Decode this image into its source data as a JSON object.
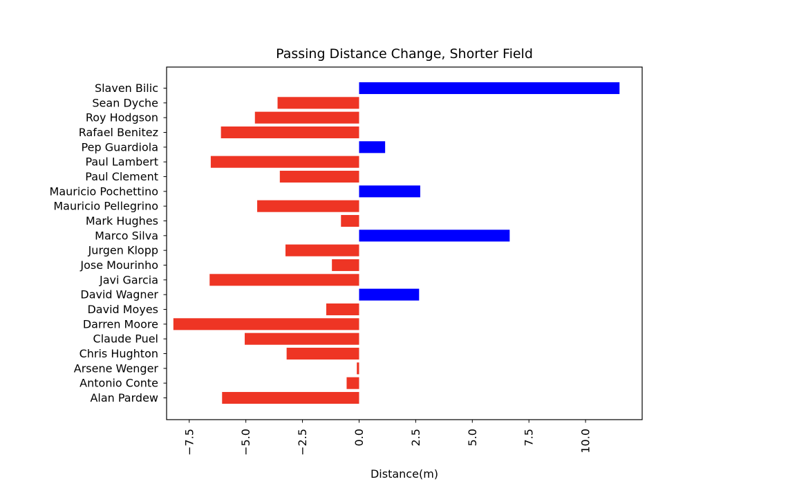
{
  "chart_data": {
    "type": "bar",
    "orientation": "horizontal",
    "title": "Passing Distance Change, Shorter Field",
    "xlabel": "Distance(m)",
    "ylabel": "",
    "xlim": [
      -8.5,
      12.5
    ],
    "xticks": [
      -7.5,
      -5.0,
      -2.5,
      0.0,
      2.5,
      5.0,
      7.5,
      10.0
    ],
    "xtick_labels": [
      "−7.5",
      "−5.0",
      "−2.5",
      "0.0",
      "2.5",
      "5.0",
      "7.5",
      "10.0"
    ],
    "xtick_rotation": "vertical",
    "grid": false,
    "legend": "none",
    "positive_color": "#0000ff",
    "negative_color": "#ee3524",
    "categories": [
      "Slaven Bilic",
      "Sean Dyche",
      "Roy Hodgson",
      "Rafael Benitez",
      "Pep Guardiola",
      "Paul Lambert",
      "Paul Clement",
      "Mauricio Pochettino",
      "Mauricio Pellegrino",
      "Mark Hughes",
      "Marco Silva",
      "Jurgen Klopp",
      "Jose Mourinho",
      "Javi Garcia",
      "David Wagner",
      "David Moyes",
      "Darren Moore",
      "Claude Puel",
      "Chris Hughton",
      "Arsene Wenger",
      "Antonio Conte",
      "Alan Pardew"
    ],
    "values": [
      11.5,
      -3.6,
      -4.6,
      -6.1,
      1.15,
      -6.55,
      -3.5,
      2.7,
      -4.5,
      -0.8,
      6.65,
      -3.25,
      -1.2,
      -6.6,
      2.65,
      -1.45,
      -8.2,
      -5.05,
      -3.2,
      -0.1,
      -0.55,
      -6.05
    ]
  }
}
